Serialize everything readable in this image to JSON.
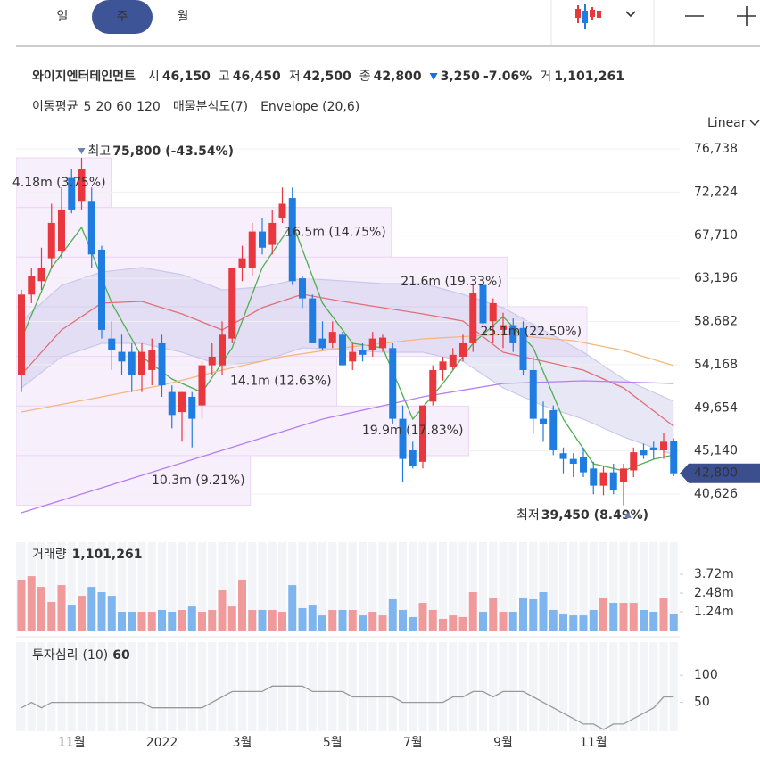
{
  "tabs": [
    "일",
    "주",
    "월"
  ],
  "selected_tab": 1,
  "header": {
    "name": "와이지엔터테인먼트",
    "quotes": [
      {
        "label": "시",
        "value": "46,150"
      },
      {
        "label": "고",
        "value": "46,450"
      },
      {
        "label": "저",
        "value": "42,500"
      },
      {
        "label": "종",
        "value": "42,800"
      }
    ],
    "change": "3,250",
    "change_pct": "-7.06%",
    "volume_label": "거",
    "volume": "1,101,261",
    "change_color": "#1a6fd8"
  },
  "legend": {
    "ma_title": "이동평균",
    "profile": "매물분석도(7)",
    "envelope": "Envelope (20,6)"
  },
  "scale_mode": "Linear",
  "chart_data": [
    {
      "type": "candlestick",
      "up_color": "#e8383d",
      "down_color": "#1f7ce0",
      "ylim": [
        38480,
        77858
      ],
      "yticks": [
        {
          "value": 40626,
          "label": "40,626"
        },
        {
          "value": 45140,
          "label": "45,140"
        },
        {
          "value": 49654,
          "label": "49,654"
        },
        {
          "value": 54168,
          "label": "54,168"
        },
        {
          "value": 58682,
          "label": "58,682"
        },
        {
          "value": 63196,
          "label": "63,196"
        },
        {
          "value": 67710,
          "label": "67,710"
        },
        {
          "value": 72224,
          "label": "72,224"
        },
        {
          "value": 76738,
          "label": "76,738"
        }
      ],
      "grid": true,
      "categories": [
        null,
        null,
        null,
        null,
        null,
        "11월",
        null,
        null,
        null,
        null,
        null,
        null,
        null,
        null,
        "2022",
        null,
        null,
        null,
        null,
        null,
        null,
        null,
        "3월",
        null,
        null,
        null,
        null,
        null,
        null,
        null,
        null,
        "5월",
        null,
        null,
        null,
        null,
        null,
        null,
        null,
        "7월",
        null,
        null,
        null,
        null,
        null,
        null,
        null,
        null,
        "9월",
        null,
        null,
        null,
        null,
        null,
        null,
        null,
        null,
        "11월",
        null,
        null,
        null,
        null,
        null,
        null,
        null,
        null
      ],
      "open": [
        53130,
        61500,
        62900,
        65300,
        66000,
        73700,
        71300,
        71300,
        66200,
        56900,
        55500,
        55500,
        53100,
        53600,
        56400,
        51300,
        49200,
        50800,
        49900,
        54100,
        54100,
        56900,
        64300,
        64300,
        68100,
        66700,
        69500,
        71600,
        63200,
        61100,
        56900,
        56400,
        57300,
        54500,
        55700,
        55700,
        55900,
        55900,
        48500,
        45200,
        44000,
        50300,
        53600,
        53900,
        55000,
        56400,
        62500,
        58700,
        57800,
        58300,
        58000,
        53600,
        48500,
        49400,
        44900,
        44300,
        44500,
        43300,
        41500,
        42900,
        41900,
        43100,
        45200,
        45500,
        45200,
        46150
      ],
      "high": [
        62000,
        64300,
        66400,
        71000,
        72700,
        74600,
        75800,
        72700,
        66600,
        58700,
        57300,
        56400,
        56400,
        56900,
        57300,
        52000,
        51300,
        51300,
        54500,
        56400,
        58700,
        64300,
        66600,
        69000,
        69500,
        70400,
        72700,
        72700,
        63400,
        61500,
        58700,
        58700,
        57600,
        56400,
        56400,
        57600,
        57300,
        56400,
        49900,
        46100,
        49900,
        54100,
        55000,
        55900,
        57300,
        62500,
        63400,
        61100,
        59600,
        59000,
        58700,
        55000,
        50300,
        49900,
        45500,
        44900,
        45500,
        44000,
        43600,
        43800,
        43800,
        45500,
        45900,
        46100,
        47000,
        46450
      ],
      "low": [
        51300,
        60600,
        62000,
        64300,
        65300,
        70000,
        70400,
        64300,
        56900,
        53600,
        53100,
        51300,
        51300,
        52000,
        50800,
        47500,
        46100,
        45500,
        48500,
        53100,
        53100,
        56400,
        62900,
        63400,
        65700,
        65700,
        69000,
        62500,
        60100,
        56400,
        55700,
        55900,
        54100,
        53600,
        54500,
        55000,
        55500,
        48000,
        41900,
        43300,
        43300,
        49900,
        52500,
        53600,
        54500,
        55500,
        58300,
        56400,
        55900,
        55500,
        53100,
        47000,
        46100,
        44700,
        42800,
        42400,
        42400,
        40600,
        40500,
        40600,
        39450,
        42400,
        44300,
        44300,
        44300,
        42500
      ],
      "close": [
        61500,
        63400,
        64300,
        69000,
        70400,
        70400,
        74600,
        65700,
        57800,
        55700,
        54500,
        53100,
        55500,
        55700,
        52000,
        48900,
        51300,
        48500,
        54100,
        55000,
        57300,
        64300,
        65300,
        68100,
        66400,
        69000,
        71000,
        62900,
        61100,
        56400,
        55900,
        57600,
        54100,
        55500,
        55200,
        56900,
        57000,
        48500,
        44300,
        43600,
        49900,
        53600,
        54500,
        55200,
        56400,
        61700,
        58500,
        60600,
        58300,
        56400,
        53600,
        48500,
        48000,
        45200,
        44300,
        43800,
        42900,
        41500,
        42900,
        41000,
        43300,
        45000,
        44700,
        45200,
        46100,
        42800
      ],
      "last_label": "42,800",
      "last_color": "#3b4f8f",
      "series": [
        {
          "name": "5",
          "color": "#4caf50",
          "x": [
            0,
            3,
            6,
            9,
            12,
            15,
            18,
            21,
            24,
            27,
            30,
            33,
            36,
            39,
            42,
            45,
            48,
            51,
            54,
            57,
            60,
            63,
            65
          ],
          "values": [
            56860,
            64330,
            68530,
            60600,
            55000,
            52660,
            51260,
            55930,
            64330,
            68990,
            60600,
            56400,
            55930,
            48460,
            52200,
            56400,
            59200,
            55930,
            48460,
            43800,
            43050,
            44270,
            44730
          ]
        },
        {
          "name": "20",
          "color": "#e07078",
          "x": [
            0,
            4,
            8,
            12,
            16,
            20,
            24,
            28,
            32,
            36,
            40,
            44,
            48,
            52,
            56,
            60,
            65
          ],
          "values": [
            53130,
            57800,
            60600,
            60780,
            59480,
            57800,
            60130,
            61530,
            60780,
            60130,
            59480,
            58730,
            55460,
            54530,
            53600,
            51730,
            47720
          ]
        },
        {
          "name": "60",
          "color": "#f5b77a",
          "x": [
            0,
            8,
            14,
            20,
            26,
            32,
            40,
            48,
            55,
            60,
            65
          ],
          "values": [
            49210,
            50800,
            52010,
            53600,
            55000,
            55930,
            56860,
            57330,
            56680,
            55650,
            54060
          ]
        },
        {
          "name": "120",
          "color": "#b47ff0",
          "x": [
            0,
            10,
            20,
            30,
            40,
            48,
            56,
            65
          ],
          "values": [
            38670,
            41930,
            45200,
            48460,
            50800,
            52200,
            52480,
            52200
          ]
        }
      ],
      "envelope": {
        "color": "#c9c9ec",
        "x": [
          0,
          4,
          8,
          12,
          16,
          20,
          24,
          28,
          32,
          36,
          40,
          44,
          48,
          52,
          56,
          60,
          65
        ],
        "upper": [
          58730,
          62460,
          63860,
          64330,
          63580,
          61990,
          62280,
          63210,
          62930,
          62650,
          62650,
          61530,
          60130,
          57800,
          55460,
          52660,
          50330
        ],
        "lower": [
          51730,
          55000,
          56400,
          56400,
          55460,
          54060,
          54530,
          55930,
          55740,
          55460,
          55460,
          54530,
          51730,
          49860,
          48460,
          46600,
          44730
        ]
      },
      "profile": {
        "color": "#f8effc",
        "edge": "#ead6f6",
        "bins": [
          {
            "label": "4.18m (3.75%)",
            "volume": 4.18,
            "low": 70607,
            "high": 75800
          },
          {
            "label": "16.5m (14.75%)",
            "volume": 16.5,
            "low": 65414,
            "high": 70607
          },
          {
            "label": "21.6m (19.33%)",
            "volume": 21.6,
            "low": 60221,
            "high": 65414
          },
          {
            "label": "25.1m (22.50%)",
            "volume": 25.1,
            "low": 55029,
            "high": 60221
          },
          {
            "label": "14.1m (12.63%)",
            "volume": 14.1,
            "low": 49836,
            "high": 55029
          },
          {
            "label": "19.9m (17.83%)",
            "volume": 19.9,
            "low": 44643,
            "high": 49836
          },
          {
            "label": "10.3m (9.21%)",
            "volume": 10.3,
            "low": 39450,
            "high": 44643
          }
        ]
      },
      "annotations": {
        "color": "#6b80b3",
        "max": {
          "label": "최고",
          "text": "75,800 (-43.54%)",
          "value": 75800
        },
        "min": {
          "label": "최저",
          "text": "39,450 (8.49%)",
          "value": 39450
        }
      }
    },
    {
      "type": "volume",
      "title": "거래량",
      "last_label": "1,101,261",
      "up_color": "#f09a9c",
      "down_color": "#7fb5ee",
      "ylim": [
        0,
        5.85
      ],
      "yticks": [
        {
          "value": 1.24,
          "label": "1.24m"
        },
        {
          "value": 2.48,
          "label": "2.48m"
        },
        {
          "value": 3.72,
          "label": "3.72m"
        }
      ],
      "values": [
        3.37,
        3.6,
        2.89,
        1.89,
        3.01,
        1.71,
        2.3,
        2.89,
        2.54,
        2.3,
        1.24,
        1.24,
        1.24,
        1.24,
        1.36,
        1.24,
        1.36,
        1.59,
        1.24,
        1.36,
        2.66,
        1.59,
        3.37,
        1.36,
        1.36,
        1.36,
        1.24,
        3.01,
        1.48,
        1.71,
        1.0,
        1.36,
        1.36,
        1.36,
        1.0,
        1.24,
        1.0,
        2.07,
        1.36,
        0.89,
        1.83,
        1.36,
        0.77,
        1.0,
        0.89,
        2.54,
        1.24,
        2.18,
        1.24,
        1.24,
        2.18,
        2.07,
        2.54,
        1.36,
        1.12,
        1.0,
        1.0,
        1.36,
        2.18,
        1.83,
        1.83,
        1.83,
        1.36,
        1.24,
        2.18,
        1.101261
      ]
    },
    {
      "type": "line",
      "title": "투자심리",
      "period": "(10)",
      "color": "#999999",
      "ylim": [
        0,
        120
      ],
      "yticks": [
        50,
        100
      ],
      "values": [
        40,
        50,
        40,
        50,
        50,
        50,
        50,
        50,
        50,
        50,
        50,
        50,
        50,
        40,
        40,
        40,
        40,
        40,
        40,
        50,
        60,
        70,
        70,
        70,
        70,
        80,
        80,
        80,
        80,
        70,
        70,
        70,
        70,
        60,
        60,
        60,
        60,
        60,
        50,
        50,
        50,
        50,
        50,
        60,
        60,
        70,
        70,
        60,
        70,
        70,
        70,
        60,
        50,
        40,
        30,
        20,
        10,
        10,
        0,
        10,
        10,
        20,
        30,
        40,
        60,
        60
      ]
    }
  ]
}
